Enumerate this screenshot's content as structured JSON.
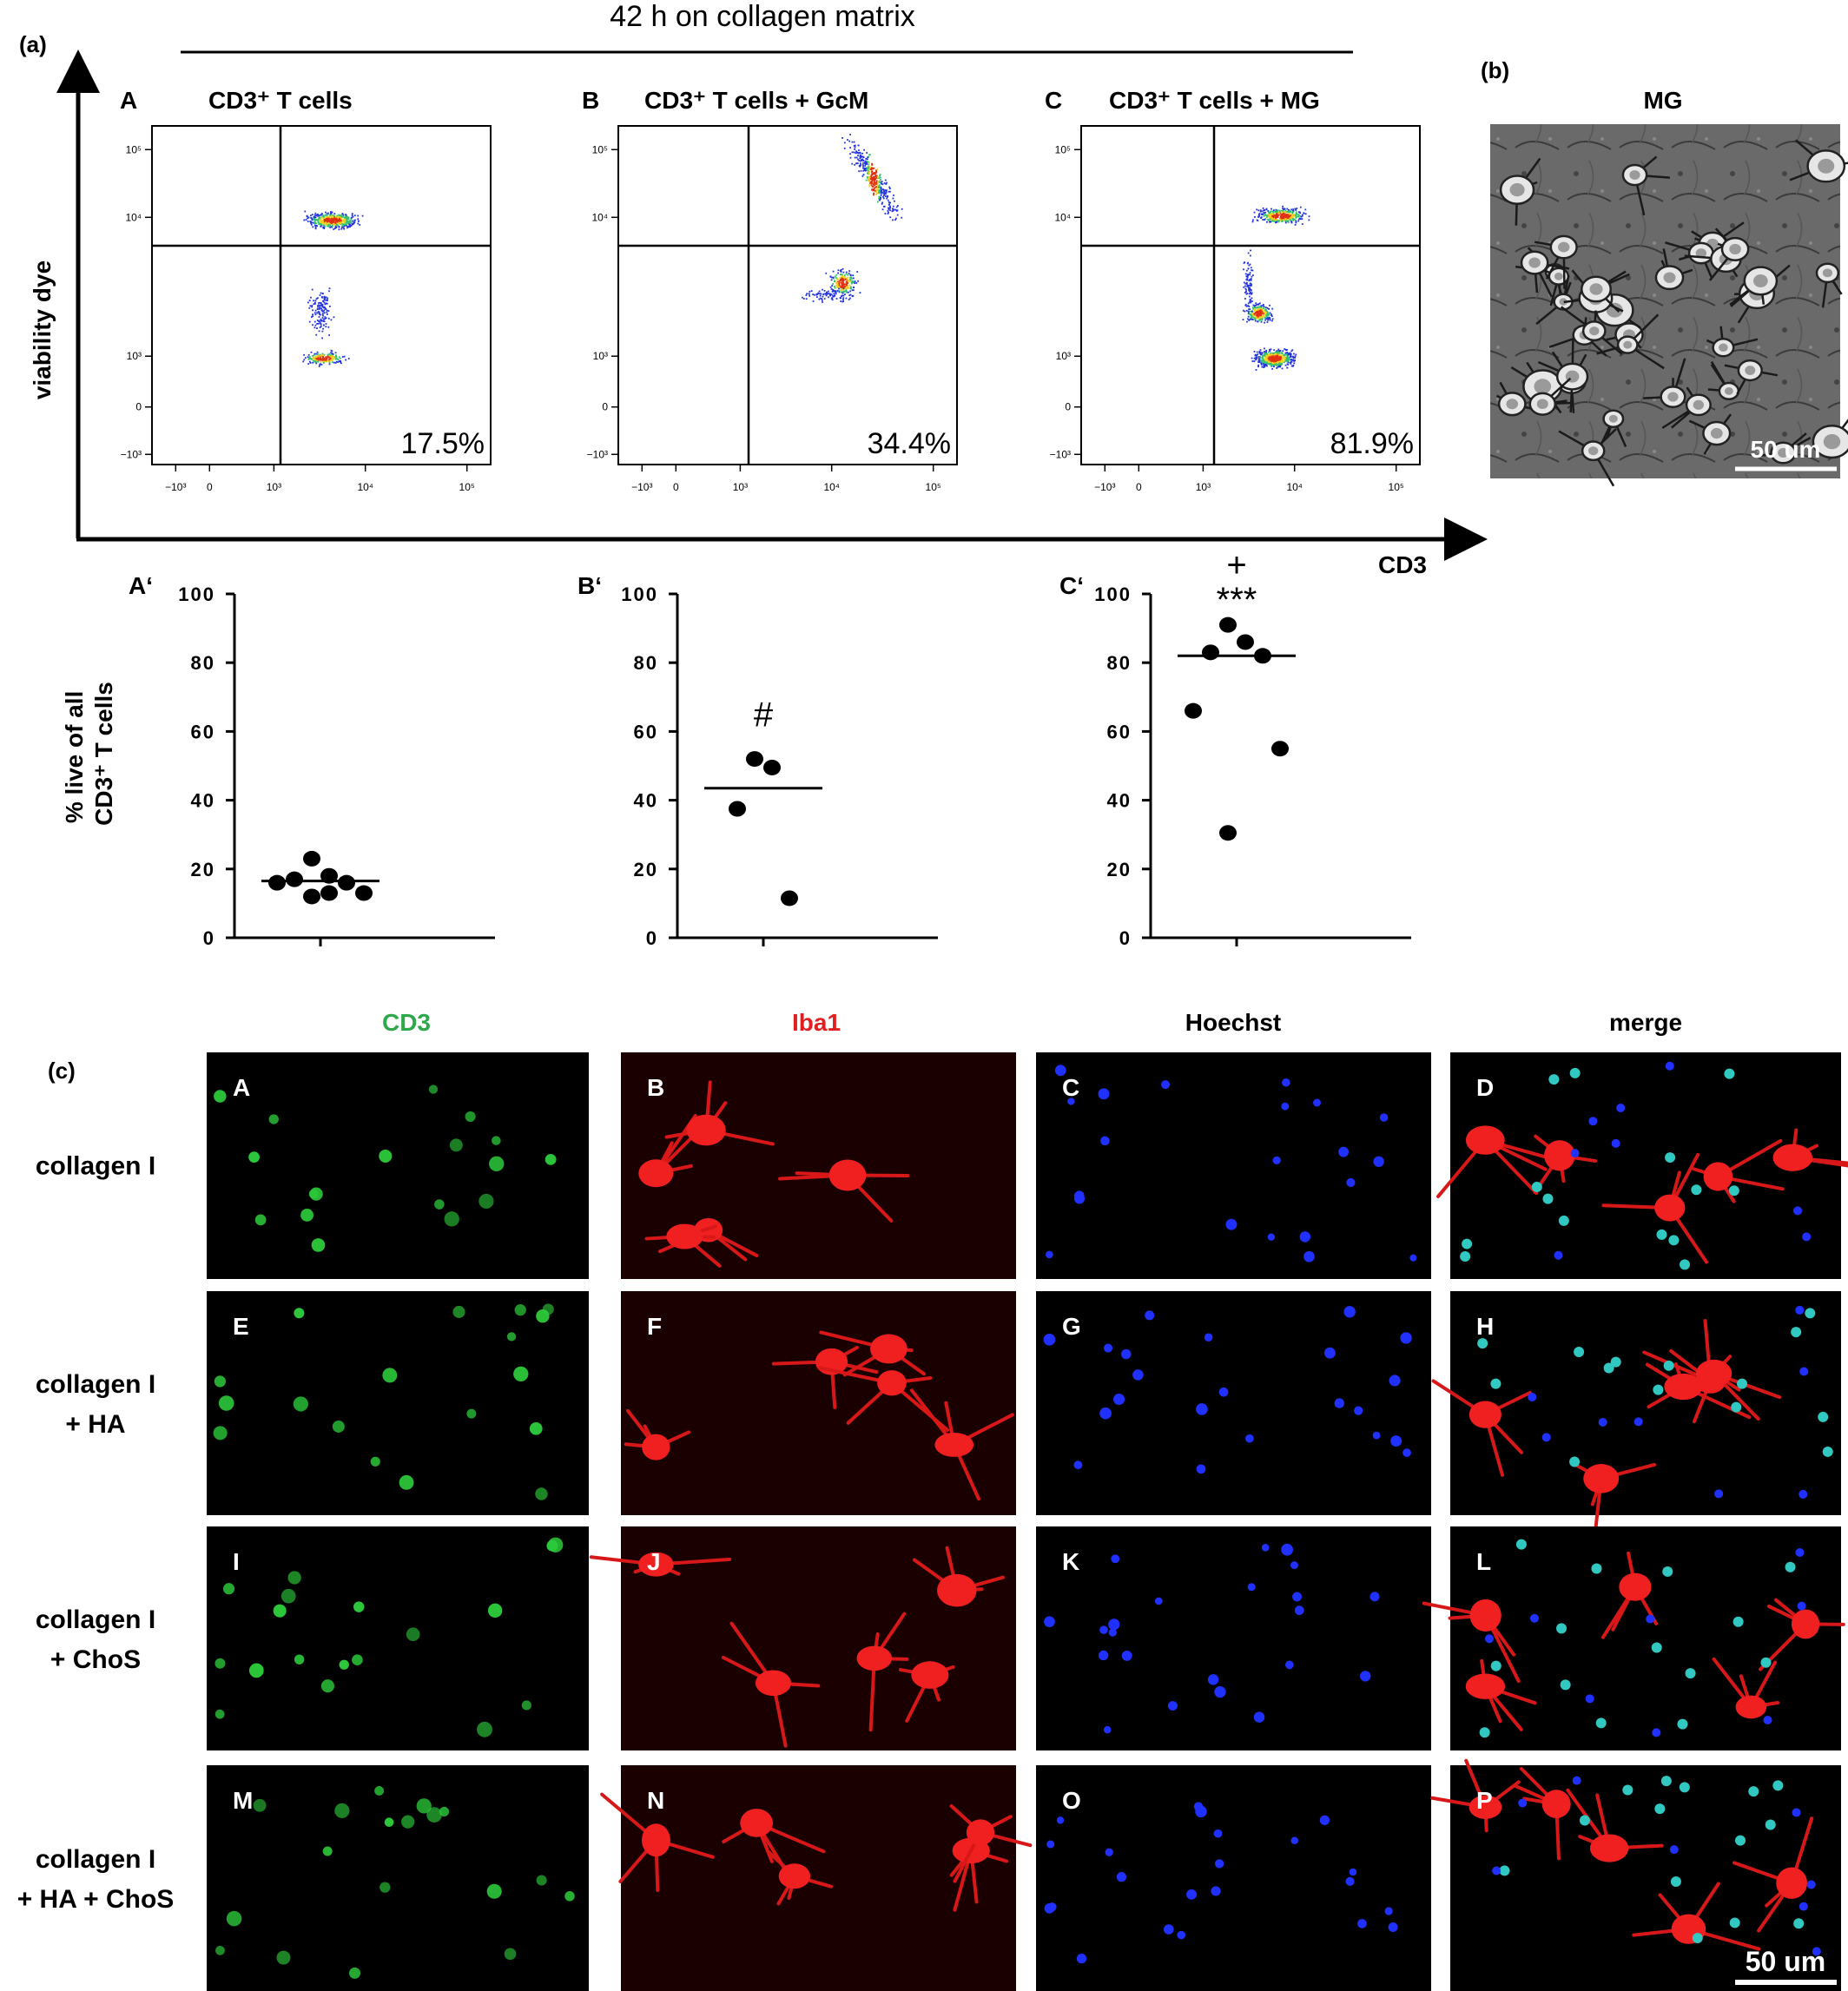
{
  "figure": {
    "panel_a_label": "(a)",
    "panel_b_label": "(b)",
    "panel_c_label": "(c)",
    "header": "42 h on collagen matrix",
    "y_axis_title": "viability dye",
    "x_axis_title": "CD3",
    "mg_title": "MG",
    "mg_scale": "50 um",
    "if_scale": "50 um"
  },
  "flow_panels": [
    {
      "letter": "A",
      "title": "CD3⁺ T cells",
      "percent": "17.5%"
    },
    {
      "letter": "B",
      "title": "CD3⁺ T cells +  GcM",
      "percent": "34.4%"
    },
    {
      "letter": "C",
      "title": "CD3⁺ T cells +  MG",
      "percent": "81.9%"
    }
  ],
  "flow_ticks": {
    "x": [
      "−10³",
      "0",
      "10³",
      "10⁴",
      "10⁵"
    ],
    "y": [
      "10⁵",
      "10⁴",
      "10³",
      "0",
      "−10³"
    ]
  },
  "chart_data": [
    {
      "type": "scatter",
      "label": "A‘",
      "ylabel": "% live of all CD3⁺ T cells",
      "ylim": [
        0,
        100
      ],
      "yticks": [
        "0",
        "20",
        "40",
        "60",
        "80",
        "100"
      ],
      "values": [
        23,
        18,
        17,
        16,
        16,
        13,
        12,
        13
      ],
      "mean": 16.5,
      "annotation": ""
    },
    {
      "type": "scatter",
      "label": "B‘",
      "ylim": [
        0,
        100
      ],
      "yticks": [
        "0",
        "20",
        "40",
        "60",
        "80",
        "100"
      ],
      "values": [
        52,
        49.5,
        37.5,
        11.5
      ],
      "mean": 43.5,
      "annotation": "#"
    },
    {
      "type": "scatter",
      "label": "C‘",
      "ylim": [
        0,
        100
      ],
      "yticks": [
        "0",
        "20",
        "40",
        "60",
        "80",
        "100"
      ],
      "values": [
        91,
        86,
        83,
        82,
        66,
        55,
        30.5
      ],
      "mean": 82,
      "annotation": "+\n***",
      "annotation_lines": [
        "+",
        "***"
      ]
    }
  ],
  "if_columns": [
    {
      "label": "CD3",
      "color": "#2ea84a"
    },
    {
      "label": "Iba1",
      "color": "#e02020"
    },
    {
      "label": "Hoechst",
      "color": "#000000"
    },
    {
      "label": "merge",
      "color": "#000000"
    }
  ],
  "if_rows": [
    {
      "label_lines": [
        "collagen I"
      ],
      "letters": [
        "A",
        "B",
        "C",
        "D"
      ]
    },
    {
      "label_lines": [
        "collagen I",
        "+ HA"
      ],
      "letters": [
        "E",
        "F",
        "G",
        "H"
      ]
    },
    {
      "label_lines": [
        "collagen I",
        "+ ChoS"
      ],
      "letters": [
        "I",
        "J",
        "K",
        "L"
      ]
    },
    {
      "label_lines": [
        "collagen I",
        "+ HA + ChoS"
      ],
      "letters": [
        "M",
        "N",
        "O",
        "P"
      ]
    }
  ]
}
